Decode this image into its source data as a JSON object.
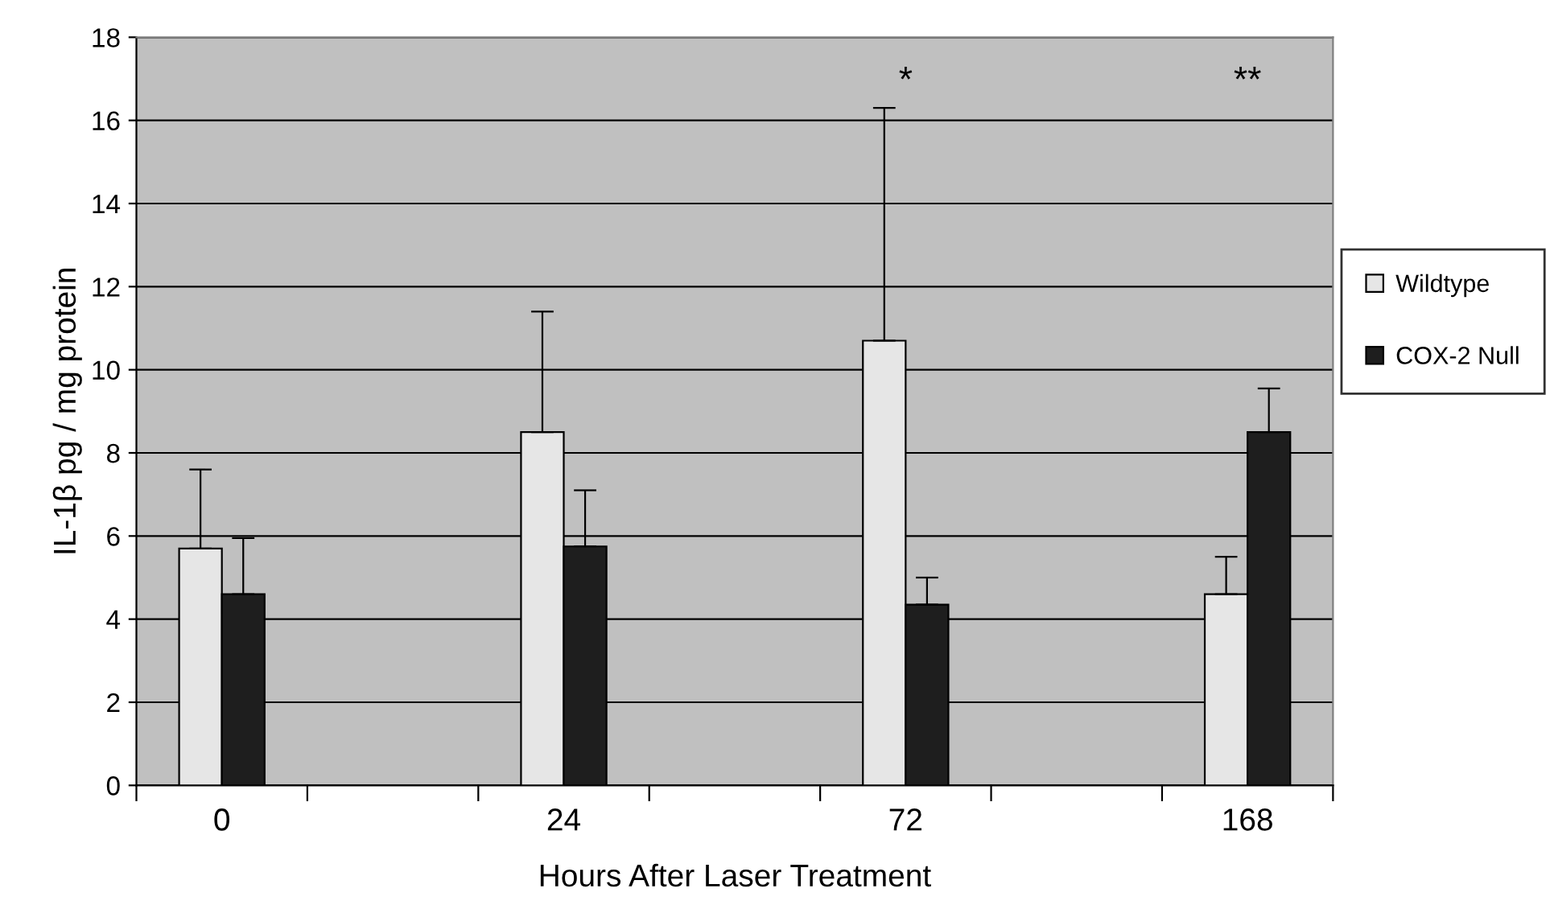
{
  "chart_data": {
    "type": "bar",
    "xlabel": "Hours After Laser Treatment",
    "ylabel": "IL-1β pg / mg protein",
    "categories": [
      "0",
      null,
      "24",
      null,
      "72",
      null,
      "168"
    ],
    "series": [
      {
        "name": "Wildtype",
        "color": "#e6e6e6",
        "values": [
          5.7,
          null,
          8.5,
          null,
          10.7,
          null,
          4.6
        ],
        "errors": [
          [
            5.7,
            7.6
          ],
          null,
          [
            8.5,
            11.4
          ],
          null,
          [
            10.7,
            16.3
          ],
          null,
          [
            4.6,
            5.5
          ]
        ]
      },
      {
        "name": "COX-2 Null",
        "color": "#1e1e1e",
        "values": [
          4.6,
          null,
          5.75,
          null,
          4.35,
          null,
          8.5
        ],
        "errors": [
          [
            4.6,
            5.95
          ],
          null,
          [
            5.75,
            7.1
          ],
          null,
          [
            4.35,
            5.0
          ],
          null,
          [
            8.5,
            9.55
          ]
        ]
      }
    ],
    "annotations": [
      "*",
      "**"
    ],
    "ylim": [
      0,
      18
    ],
    "yticks": [
      0,
      2,
      4,
      6,
      8,
      10,
      12,
      14,
      16,
      18
    ],
    "grid": "y",
    "legend": "right"
  }
}
